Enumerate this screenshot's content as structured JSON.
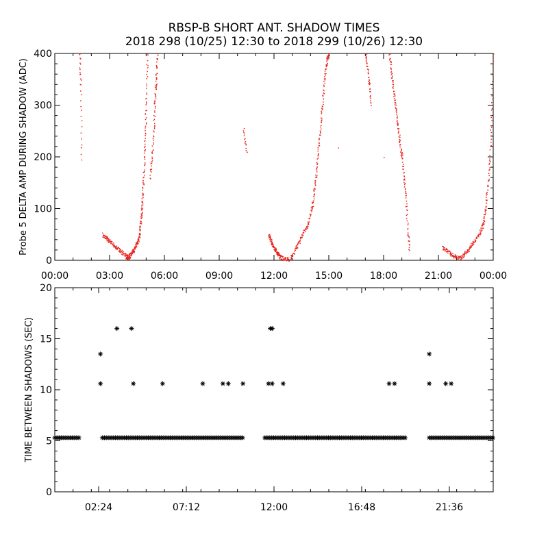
{
  "title_line1": "RBSP-B SHORT ANT. SHADOW TIMES",
  "title_line2": "2018 298 (10/25) 12:30 to 2018 299 (10/26) 12:30",
  "colors": {
    "amplitude_points": "#e8231c",
    "interval_points": "#000000",
    "axes": "#000000",
    "background": "#ffffff"
  },
  "chart_data": [
    {
      "type": "scatter",
      "title": "",
      "ylabel": "Probe 5 DELTA AMP DURING SHADOW (ADC)",
      "xlabel": "",
      "xlim": [
        "00:00",
        "24:00"
      ],
      "ylim": [
        0,
        400
      ],
      "x_tick_labels": [
        "00:00",
        "03:00",
        "06:00",
        "09:00",
        "12:00",
        "15:00",
        "18:00",
        "21:00",
        "00:00"
      ],
      "y_tick_labels": [
        "0",
        "100",
        "200",
        "300",
        "400"
      ],
      "series": [
        {
          "color": "#e8231c",
          "marker": "dot",
          "segments": [
            {
              "note_x": "hours",
              "x": [
                1.35,
                1.4,
                1.45
              ],
              "y": [
                400,
                340,
                195
              ]
            },
            {
              "x": [
                2.6,
                2.75,
                2.9,
                3.0,
                3.2,
                3.4,
                3.6,
                3.8,
                3.95,
                4.1
              ],
              "y": [
                50,
                45,
                40,
                36,
                30,
                24,
                18,
                12,
                8,
                5
              ]
            },
            {
              "x": [
                3.9,
                4.0,
                4.1,
                4.2,
                4.3,
                4.4,
                4.5,
                4.6,
                4.65,
                4.7,
                4.75,
                4.8,
                4.85,
                4.9,
                4.95,
                5.0,
                5.05
              ],
              "y": [
                4,
                6,
                10,
                15,
                20,
                26,
                34,
                45,
                60,
                80,
                100,
                130,
                165,
                210,
                260,
                320,
                400
              ]
            },
            {
              "x": [
                5.2,
                5.3,
                5.4,
                5.45,
                5.5,
                5.55,
                5.6
              ],
              "y": [
                160,
                200,
                250,
                300,
                330,
                360,
                400
              ]
            },
            {
              "x": [
                10.3,
                10.5
              ],
              "y": [
                255,
                210
              ]
            },
            {
              "x": [
                11.7,
                11.8,
                11.9,
                12.0,
                12.1,
                12.2,
                12.3,
                12.4,
                12.6,
                12.8
              ],
              "y": [
                50,
                40,
                32,
                25,
                18,
                12,
                8,
                5,
                3,
                2
              ]
            },
            {
              "x": [
                12.9,
                13.0,
                13.2,
                13.4,
                13.6,
                13.8,
                14.0,
                14.1,
                14.2,
                14.3,
                14.4,
                14.5,
                14.6,
                14.7,
                14.8,
                14.9,
                15.0
              ],
              "y": [
                5,
                10,
                25,
                40,
                55,
                65,
                90,
                110,
                140,
                170,
                210,
                250,
                290,
                330,
                370,
                390,
                400
              ]
            },
            {
              "x": [
                15.5
              ],
              "y": [
                218
              ]
            },
            {
              "x": [
                17.0,
                17.1,
                17.2,
                17.3
              ],
              "y": [
                400,
                370,
                340,
                300
              ]
            },
            {
              "x": [
                18.0
              ],
              "y": [
                200
              ]
            },
            {
              "x": [
                18.3,
                18.4,
                18.5,
                18.6,
                18.7,
                18.8,
                18.9,
                19.0,
                19.1,
                19.2,
                19.3,
                19.4
              ],
              "y": [
                400,
                370,
                340,
                310,
                280,
                250,
                220,
                200,
                160,
                120,
                60,
                20
              ]
            },
            {
              "x": [
                21.2,
                21.4,
                21.6,
                21.8,
                22.0,
                22.2,
                22.4,
                22.6,
                22.8,
                23.0,
                23.2,
                23.4,
                23.5,
                23.6,
                23.7,
                23.8,
                23.9,
                24.0
              ],
              "y": [
                25,
                20,
                15,
                10,
                5,
                6,
                12,
                20,
                30,
                40,
                50,
                65,
                85,
                110,
                150,
                200,
                280,
                400
              ]
            }
          ]
        }
      ]
    },
    {
      "type": "scatter",
      "title": "",
      "ylabel": "TIME BETWEEN SHADOWS (SEC)",
      "xlabel": "",
      "xlim": [
        "00:00",
        "24:00"
      ],
      "ylim": [
        0,
        20
      ],
      "x_tick_labels": [
        "02:24",
        "07:12",
        "12:00",
        "16:48",
        "21:36"
      ],
      "y_tick_labels": [
        "0",
        "5",
        "10",
        "15",
        "20"
      ],
      "series": [
        {
          "color": "#000000",
          "marker": "asterisk",
          "baseline_value": 5.3,
          "baseline_ranges": [
            [
              0.0,
              1.35
            ],
            [
              2.6,
              10.3
            ],
            [
              11.5,
              19.2
            ],
            [
              20.5,
              24.0
            ]
          ],
          "points": [
            {
              "x": 2.5,
              "y": 13.5
            },
            {
              "x": 2.5,
              "y": 10.6
            },
            {
              "x": 3.4,
              "y": 16.0
            },
            {
              "x": 4.2,
              "y": 16.0
            },
            {
              "x": 4.3,
              "y": 10.6
            },
            {
              "x": 5.9,
              "y": 10.6
            },
            {
              "x": 8.1,
              "y": 10.6
            },
            {
              "x": 9.2,
              "y": 10.6
            },
            {
              "x": 9.5,
              "y": 10.6
            },
            {
              "x": 10.3,
              "y": 10.6
            },
            {
              "x": 11.7,
              "y": 10.6
            },
            {
              "x": 11.9,
              "y": 10.6
            },
            {
              "x": 11.8,
              "y": 16.0
            },
            {
              "x": 11.9,
              "y": 16.0
            },
            {
              "x": 12.5,
              "y": 10.6
            },
            {
              "x": 18.3,
              "y": 10.6
            },
            {
              "x": 18.6,
              "y": 10.6
            },
            {
              "x": 20.5,
              "y": 13.5
            },
            {
              "x": 20.5,
              "y": 10.6
            },
            {
              "x": 21.4,
              "y": 10.6
            },
            {
              "x": 21.7,
              "y": 10.6
            }
          ]
        }
      ]
    }
  ]
}
